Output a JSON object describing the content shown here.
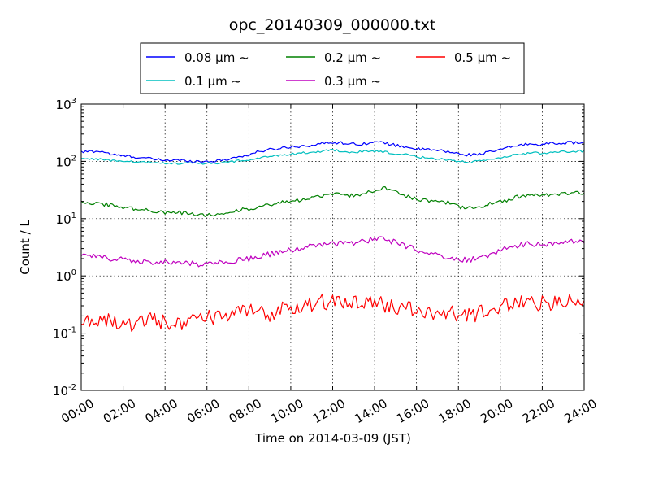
{
  "chart_data": {
    "type": "line",
    "title": "opc_20140309_000000.txt",
    "xlabel": "Time on 2014-03-09 (JST)",
    "ylabel": "Count / L",
    "x_unit": "hours",
    "xlim": [
      0,
      24
    ],
    "ylim": [
      0.01,
      1000
    ],
    "yscale": "log",
    "grid": true,
    "legend_position": "top-center, above plot",
    "x_ticks": [
      "00:00",
      "02:00",
      "04:00",
      "06:00",
      "08:00",
      "10:00",
      "12:00",
      "14:00",
      "16:00",
      "18:00",
      "20:00",
      "22:00",
      "24:00"
    ],
    "y_ticks": [
      {
        "base": "10",
        "exp": "-2",
        "value": 0.01
      },
      {
        "base": "10",
        "exp": "-1",
        "value": 0.1
      },
      {
        "base": "10",
        "exp": "0",
        "value": 1
      },
      {
        "base": "10",
        "exp": "1",
        "value": 10
      },
      {
        "base": "10",
        "exp": "2",
        "value": 100
      },
      {
        "base": "10",
        "exp": "3",
        "value": 1000
      }
    ],
    "x": [
      0,
      0.5,
      1,
      1.5,
      2,
      2.5,
      3,
      3.5,
      4,
      4.5,
      5,
      5.5,
      6,
      6.5,
      7,
      7.5,
      8,
      8.5,
      9,
      9.5,
      10,
      10.5,
      11,
      11.5,
      12,
      12.5,
      13,
      13.5,
      14,
      14.5,
      15,
      15.5,
      16,
      16.5,
      17,
      17.5,
      18,
      18.5,
      19,
      19.5,
      20,
      20.5,
      21,
      21.5,
      22,
      22.5,
      23,
      23.5,
      24
    ],
    "series": [
      {
        "name": "0.08 μm ~",
        "color": "#0000ff",
        "values": [
          145,
          150,
          150,
          130,
          125,
          120,
          115,
          108,
          105,
          105,
          103,
          100,
          100,
          102,
          110,
          120,
          130,
          150,
          160,
          170,
          180,
          185,
          190,
          205,
          215,
          210,
          200,
          205,
          215,
          210,
          190,
          180,
          165,
          160,
          155,
          148,
          135,
          130,
          135,
          145,
          160,
          180,
          195,
          200,
          200,
          205,
          210,
          212,
          215
        ]
      },
      {
        "name": "0.1 μm ~",
        "color": "#00bfbf",
        "values": [
          110,
          112,
          108,
          103,
          100,
          98,
          96,
          94,
          93,
          93,
          92,
          92,
          92,
          93,
          97,
          102,
          105,
          115,
          120,
          128,
          135,
          140,
          145,
          150,
          160,
          150,
          145,
          148,
          150,
          145,
          135,
          130,
          120,
          115,
          110,
          108,
          100,
          97,
          100,
          105,
          115,
          125,
          135,
          140,
          140,
          145,
          148,
          150,
          152
        ]
      },
      {
        "name": "0.2 μm ~",
        "color": "#008000",
        "values": [
          20,
          19,
          18,
          17,
          16,
          15,
          14,
          13.5,
          13,
          12.8,
          12.5,
          12,
          11.5,
          12,
          13,
          14,
          15,
          16,
          17,
          19,
          20,
          21,
          23,
          25,
          27,
          26,
          25,
          27,
          32,
          35,
          30,
          25,
          22,
          21,
          20,
          19,
          16,
          15,
          16,
          18,
          20,
          22,
          25,
          26,
          25,
          26,
          27,
          28,
          28
        ]
      },
      {
        "name": "0.3 μm ~",
        "color": "#bf00bf",
        "values": [
          2.3,
          2.2,
          2.1,
          2.0,
          2.0,
          1.9,
          1.8,
          1.7,
          1.7,
          1.7,
          1.7,
          1.6,
          1.6,
          1.7,
          1.8,
          1.9,
          2.0,
          2.2,
          2.4,
          2.6,
          2.8,
          3.0,
          3.3,
          3.6,
          3.7,
          3.6,
          3.7,
          4.0,
          4.5,
          4.4,
          3.8,
          3.3,
          2.8,
          2.5,
          2.3,
          2.1,
          1.9,
          1.9,
          2.1,
          2.4,
          2.8,
          3.1,
          3.5,
          3.6,
          3.6,
          3.7,
          3.9,
          4.0,
          4.0
        ]
      },
      {
        "name": "0.5 μm ~",
        "color": "#ff0000",
        "values": [
          0.17,
          0.16,
          0.18,
          0.15,
          0.17,
          0.14,
          0.16,
          0.18,
          0.15,
          0.16,
          0.15,
          0.17,
          0.18,
          0.2,
          0.19,
          0.22,
          0.24,
          0.22,
          0.2,
          0.28,
          0.3,
          0.31,
          0.32,
          0.35,
          0.34,
          0.33,
          0.32,
          0.36,
          0.34,
          0.31,
          0.28,
          0.27,
          0.25,
          0.24,
          0.23,
          0.22,
          0.21,
          0.2,
          0.22,
          0.26,
          0.3,
          0.32,
          0.34,
          0.35,
          0.33,
          0.32,
          0.34,
          0.36,
          0.37
        ]
      }
    ]
  }
}
